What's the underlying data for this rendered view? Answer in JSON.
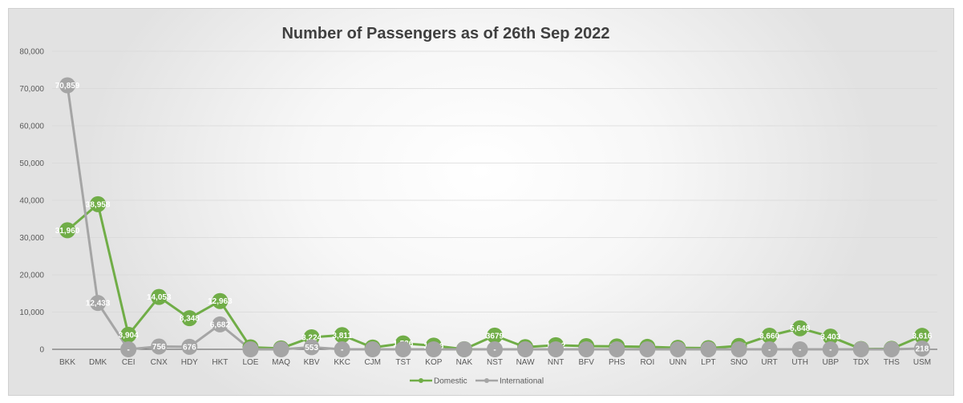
{
  "colors": {
    "domestic": "#70ad47",
    "international": "#a5a5a5",
    "grid": "#d9d9d9",
    "axis": "#595959"
  },
  "chart_data": {
    "type": "line",
    "title": "Number of Passengers as of 26th Sep 2022",
    "xlabel": "",
    "ylabel": "",
    "ylim": [
      0,
      80000
    ],
    "yticks": [
      {
        "value": 0,
        "label": "0"
      },
      {
        "value": 10000,
        "label": "10,000"
      },
      {
        "value": 20000,
        "label": "20,000"
      },
      {
        "value": 30000,
        "label": "30,000"
      },
      {
        "value": 40000,
        "label": "40,000"
      },
      {
        "value": 50000,
        "label": "50,000"
      },
      {
        "value": 60000,
        "label": "60,000"
      },
      {
        "value": 70000,
        "label": "70,000"
      },
      {
        "value": 80000,
        "label": "80,000"
      }
    ],
    "grid": true,
    "legend_position": "bottom",
    "categories": [
      "BKK",
      "DMK",
      "CEI",
      "CNX",
      "HDY",
      "HKT",
      "LOE",
      "MAQ",
      "KBV",
      "KKC",
      "CJM",
      "TST",
      "KOP",
      "NAK",
      "NST",
      "NAW",
      "NNT",
      "BFV",
      "PHS",
      "ROI",
      "UNN",
      "LPT",
      "SNO",
      "URT",
      "UTH",
      "UBP",
      "TDX",
      "THS",
      "USM"
    ],
    "series": [
      {
        "name": "Domestic",
        "color": "#70ad47",
        "values": [
          31960,
          38958,
          3904,
          14053,
          8348,
          12963,
          551,
          254,
          3224,
          3811,
          483,
          1586,
          1006,
          26,
          3679,
          588,
          1112,
          853,
          786,
          660,
          394,
          317,
          907,
          3660,
          5648,
          3403,
          93,
          129,
          3616
        ],
        "labels": [
          "31,960",
          "38,958",
          "3,904",
          "14,053",
          "8,348",
          "12,963",
          "551",
          "254",
          "3,224",
          "3,811",
          "483",
          "1,586",
          "1,006",
          "26",
          "3679",
          "588",
          "1,112",
          "853",
          "786",
          "660",
          "394",
          "317",
          "907",
          "3,660",
          "5,648",
          "3,403",
          "93",
          "129",
          "3,616"
        ]
      },
      {
        "name": "International",
        "color": "#a5a5a5",
        "values": [
          70859,
          12433,
          0,
          756,
          676,
          6682,
          0,
          0,
          553,
          0,
          0,
          0,
          0,
          0,
          0,
          0,
          0,
          0,
          0,
          0,
          0,
          0,
          0,
          0,
          0,
          0,
          0,
          0,
          218
        ],
        "labels": [
          "70,859",
          "12,433",
          "-",
          "756",
          "676",
          "6,682",
          "",
          "",
          "553",
          "-",
          "",
          "",
          "",
          "",
          "-",
          "",
          "",
          "",
          "",
          "",
          "",
          "",
          "",
          "-",
          "-",
          "-",
          "",
          "",
          "218"
        ]
      }
    ]
  }
}
